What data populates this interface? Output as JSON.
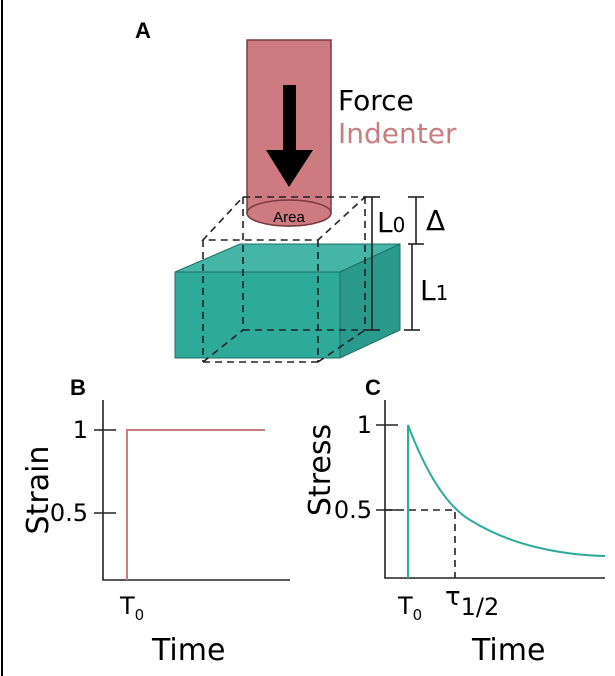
{
  "panel_a": {
    "label": "A",
    "force": "Force",
    "indenter": "Indenter",
    "area": "Area",
    "l0": "L",
    "l0_sub": "0",
    "delta": "Δ",
    "l1": "L",
    "l1_sub": "1"
  },
  "panel_b": {
    "label": "B",
    "y_axis": "Strain",
    "y_tick_labels": [
      "1",
      "0.5"
    ],
    "t0": "T",
    "t0_sub": "0",
    "x_axis": "Time"
  },
  "panel_c": {
    "label": "C",
    "y_axis": "Stress",
    "y_tick_labels": [
      "1",
      "0.5"
    ],
    "t0": "T",
    "t0_sub": "0",
    "tau": "τ",
    "tau_sub": "1/2",
    "x_axis": "Time"
  }
}
